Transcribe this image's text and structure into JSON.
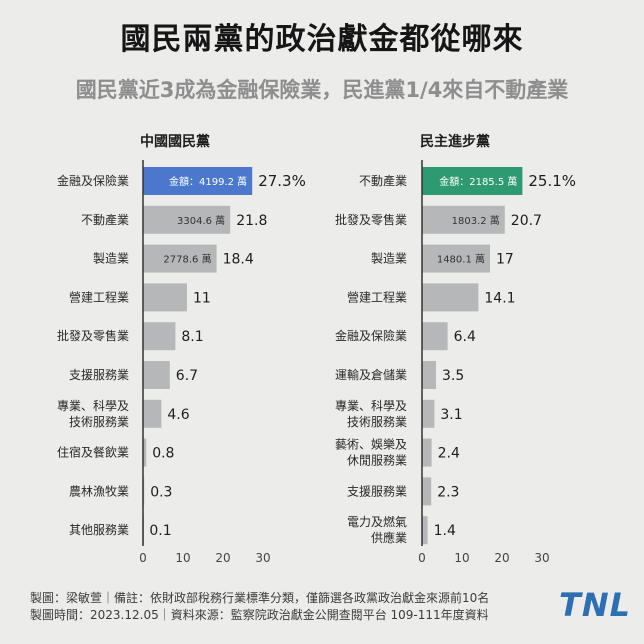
{
  "title": "國民兩黨的政治獻金都從哪來",
  "subtitle": "國民黨近3成為金融保險業，民進黨1/4來自不動產業",
  "colors": {
    "kmt_highlight": "#4b78cc",
    "dpp_highlight": "#2d9a72",
    "bar": "#b6b7b9",
    "axis": "#333333"
  },
  "chart_data": [
    {
      "type": "bar",
      "orientation": "horizontal",
      "title": "中國國民黨",
      "categories": [
        "金融及保險業",
        "不動產業",
        "製造業",
        "營建工程業",
        "批發及零售業",
        "支援服務業",
        "專業、科學及\n技術服務業",
        "住宿及餐飲業",
        "農林漁牧業",
        "其他服務業"
      ],
      "values": [
        27.3,
        21.8,
        18.4,
        11,
        8.1,
        6.7,
        4.6,
        0.8,
        0.3,
        0.1
      ],
      "value_labels": [
        "27.3%",
        "21.8",
        "18.4",
        "11",
        "8.1",
        "6.7",
        "4.6",
        "0.8",
        "0.3",
        "0.1"
      ],
      "amount_labels": [
        "金額：4199.2 萬",
        "3304.6 萬",
        "2778.6 萬",
        "",
        "",
        "",
        "",
        "",
        "",
        ""
      ],
      "xlim": [
        0,
        30
      ],
      "xticks": [
        "0",
        "10",
        "20",
        "30"
      ],
      "highlight_index": 0,
      "grid": false
    },
    {
      "type": "bar",
      "orientation": "horizontal",
      "title": "民主進步黨",
      "categories": [
        "不動產業",
        "批發及零售業",
        "製造業",
        "營建工程業",
        "金融及保險業",
        "運輸及倉儲業",
        "專業、科學及\n技術服務業",
        "藝術、娛樂及\n休閒服務業",
        "支援服務業",
        "電力及燃氣\n供應業"
      ],
      "values": [
        25.1,
        20.7,
        17,
        14.1,
        6.4,
        3.5,
        3.1,
        2.4,
        2.3,
        1.4
      ],
      "value_labels": [
        "25.1%",
        "20.7",
        "17",
        "14.1",
        "6.4",
        "3.5",
        "3.1",
        "2.4",
        "2.3",
        "1.4"
      ],
      "amount_labels": [
        "金額：2185.5 萬",
        "1803.2 萬",
        "1480.1 萬",
        "",
        "",
        "",
        "",
        "",
        "",
        ""
      ],
      "xlim": [
        0,
        30
      ],
      "xticks": [
        "0",
        "10",
        "20",
        "30"
      ],
      "highlight_index": 0,
      "grid": false
    }
  ],
  "footer": {
    "line1": "製圖：梁敏萱｜備註：依財政部稅務行業標準分類，僅篩選各政黨政治獻金來源前10名",
    "line2": "製圖時間：2023.12.05｜資料來源：監察院政治獻金公開查閱平台 109-111年度資料"
  },
  "logo_text": "TNL"
}
